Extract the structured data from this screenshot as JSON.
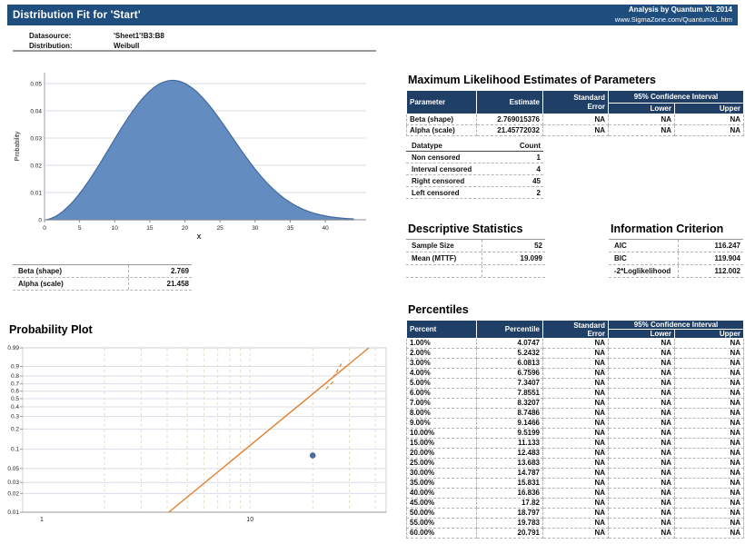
{
  "header": {
    "title": "Distribution Fit for 'Start'",
    "credit_line1": "Analysis by Quantum XL 2014",
    "credit_line2": "www.SigmaZone.com/QuantumXL.htm"
  },
  "info": {
    "datasource_label": "Datasource:",
    "datasource_value": "'Sheet1'!B3:B8",
    "distribution_label": "Distribution:",
    "distribution_value": "Weibull"
  },
  "sections": {
    "mle_title": "Maximum Likelihood Estimates of Parameters",
    "descriptive_title": "Descriptive Statistics",
    "information_title": "Information Criterion",
    "percentiles_title": "Percentiles",
    "probability_plot_title": "Probability Plot"
  },
  "mle": {
    "headers": {
      "parameter": "Parameter",
      "estimate": "Estimate",
      "std_error": "Standard\nError",
      "ci": "95% Confidence Interval",
      "lower": "Lower",
      "upper": "Upper"
    },
    "rows": [
      {
        "parameter": "Beta (shape)",
        "estimate": "2.769015376",
        "std_error": "NA",
        "lower": "NA",
        "upper": "NA"
      },
      {
        "parameter": "Alpha (scale)",
        "estimate": "21.45772032",
        "std_error": "NA",
        "lower": "NA",
        "upper": "NA"
      }
    ]
  },
  "datatype": {
    "headers": {
      "datatype": "Datatype",
      "count": "Count"
    },
    "rows": [
      {
        "label": "Non censored",
        "value": "1"
      },
      {
        "label": "Interval censored",
        "value": "4"
      },
      {
        "label": "Right censored",
        "value": "45"
      },
      {
        "label": "Left censored",
        "value": "2"
      }
    ]
  },
  "descriptive": {
    "rows": [
      {
        "label": "Sample Size",
        "value": "52"
      },
      {
        "label": "Mean (MTTF)",
        "value": "19.099"
      },
      {
        "label": "",
        "value": ""
      }
    ]
  },
  "information_criterion": {
    "rows": [
      {
        "label": "AIC",
        "value": "116.247"
      },
      {
        "label": "BIC",
        "value": "119.904"
      },
      {
        "label": "-2*Loglikelihood",
        "value": "112.002"
      }
    ]
  },
  "params_table": {
    "rows": [
      {
        "label": "Beta (shape)",
        "value": "2.769"
      },
      {
        "label": "Alpha (scale)",
        "value": "21.458"
      }
    ]
  },
  "percentiles": {
    "headers": {
      "percent": "Percent",
      "percentile": "Percentile",
      "std_error": "Standard\nError",
      "ci": "95% Confidence Interval",
      "lower": "Lower",
      "upper": "Upper"
    },
    "rows": [
      {
        "percent": "1.00%",
        "percentile": "4.0747",
        "std_error": "NA",
        "lower": "NA",
        "upper": "NA"
      },
      {
        "percent": "2.00%",
        "percentile": "5.2432",
        "std_error": "NA",
        "lower": "NA",
        "upper": "NA"
      },
      {
        "percent": "3.00%",
        "percentile": "6.0813",
        "std_error": "NA",
        "lower": "NA",
        "upper": "NA"
      },
      {
        "percent": "4.00%",
        "percentile": "6.7596",
        "std_error": "NA",
        "lower": "NA",
        "upper": "NA"
      },
      {
        "percent": "5.00%",
        "percentile": "7.3407",
        "std_error": "NA",
        "lower": "NA",
        "upper": "NA"
      },
      {
        "percent": "6.00%",
        "percentile": "7.8551",
        "std_error": "NA",
        "lower": "NA",
        "upper": "NA"
      },
      {
        "percent": "7.00%",
        "percentile": "8.3207",
        "std_error": "NA",
        "lower": "NA",
        "upper": "NA"
      },
      {
        "percent": "8.00%",
        "percentile": "8.7486",
        "std_error": "NA",
        "lower": "NA",
        "upper": "NA"
      },
      {
        "percent": "9.00%",
        "percentile": "9.1466",
        "std_error": "NA",
        "lower": "NA",
        "upper": "NA"
      },
      {
        "percent": "10.00%",
        "percentile": "9.5199",
        "std_error": "NA",
        "lower": "NA",
        "upper": "NA"
      },
      {
        "percent": "15.00%",
        "percentile": "11.133",
        "std_error": "NA",
        "lower": "NA",
        "upper": "NA"
      },
      {
        "percent": "20.00%",
        "percentile": "12.483",
        "std_error": "NA",
        "lower": "NA",
        "upper": "NA"
      },
      {
        "percent": "25.00%",
        "percentile": "13.683",
        "std_error": "NA",
        "lower": "NA",
        "upper": "NA"
      },
      {
        "percent": "30.00%",
        "percentile": "14.787",
        "std_error": "NA",
        "lower": "NA",
        "upper": "NA"
      },
      {
        "percent": "35.00%",
        "percentile": "15.831",
        "std_error": "NA",
        "lower": "NA",
        "upper": "NA"
      },
      {
        "percent": "40.00%",
        "percentile": "16.836",
        "std_error": "NA",
        "lower": "NA",
        "upper": "NA"
      },
      {
        "percent": "45.00%",
        "percentile": "17.82",
        "std_error": "NA",
        "lower": "NA",
        "upper": "NA"
      },
      {
        "percent": "50.00%",
        "percentile": "18.797",
        "std_error": "NA",
        "lower": "NA",
        "upper": "NA"
      },
      {
        "percent": "55.00%",
        "percentile": "19.783",
        "std_error": "NA",
        "lower": "NA",
        "upper": "NA"
      },
      {
        "percent": "60.00%",
        "percentile": "20.791",
        "std_error": "NA",
        "lower": "NA",
        "upper": "NA"
      }
    ]
  },
  "chart_data": [
    {
      "type": "area",
      "title": "Weibull probability density",
      "xlabel": "X",
      "ylabel": "Probability",
      "distribution": "weibull-pdf",
      "beta": 2.769015376,
      "alpha": 21.45772032,
      "xlim": [
        0,
        44
      ],
      "ylim": [
        0,
        0.055
      ],
      "x_ticks": [
        0,
        5,
        10,
        15,
        20,
        25,
        30,
        35,
        40
      ],
      "y_ticks": [
        0,
        0.01,
        0.02,
        0.03,
        0.04,
        0.05
      ],
      "peak": {
        "x": 18.25,
        "y": 0.0513
      },
      "grid": true,
      "fill_color": "#5B87BE",
      "line_color": "#44699B"
    },
    {
      "type": "scatter",
      "title": "Probability Plot",
      "x_scale": "log",
      "y_scale": "weibull-probability",
      "xlim": [
        0.81,
        45
      ],
      "plim": [
        0.01,
        0.99
      ],
      "x_ticks": [
        1,
        10
      ],
      "x_minor_gridlines": [
        2,
        3,
        4,
        5,
        6,
        7,
        8,
        9,
        10,
        20,
        30,
        40
      ],
      "y_ticks": [
        0.99,
        0.9,
        0.8,
        0.7,
        0.6,
        0.5,
        0.4,
        0.3,
        0.2,
        0.1,
        0.05,
        0.03,
        0.02,
        0.01
      ],
      "fit_line": {
        "x1": 4.0747,
        "p1": 0.01,
        "x2": 37.2,
        "p2": 0.99,
        "color": "#E0802F"
      },
      "dashed_segments": [
        {
          "x1": 23.2,
          "p1": 0.63,
          "x2": 25.5,
          "p2": 0.75
        },
        {
          "x1": 25.0,
          "p1": 0.78,
          "x2": 28.0,
          "p2": 0.94
        }
      ],
      "points": [
        {
          "x": 20,
          "p": 0.08
        }
      ],
      "point_color": "#4A6FA5",
      "grid": true
    }
  ]
}
